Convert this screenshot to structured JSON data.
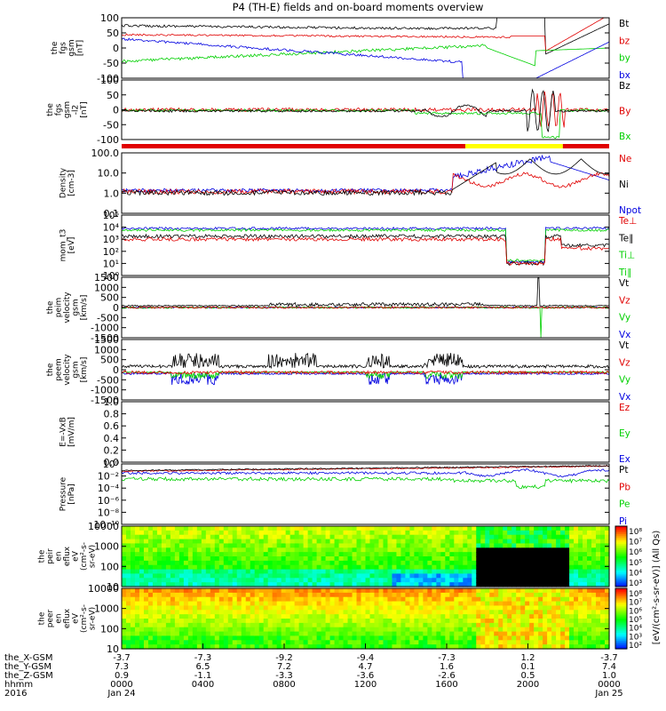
{
  "title": "P4 (TH-E) fields and on-board moments overview",
  "colors": {
    "black": "#000000",
    "red": "#e00000",
    "green": "#00d000",
    "blue": "#0000e0",
    "yellow": "#ffff00"
  },
  "chart_data": {
    "type": "line",
    "xaxis": {
      "ticks": [
        "0000",
        "0400",
        "0800",
        "1200",
        "1600",
        "2000",
        "0000"
      ],
      "dates": [
        "Jan 24",
        "",
        "",
        "",
        "",
        "",
        "Jan 25"
      ],
      "year": "2016",
      "rows": [
        {
          "label": "the_X-GSM",
          "values": [
            "-3.7",
            "-7.3",
            "-9.2",
            "-9.4",
            "-7.3",
            "1.2",
            "-3.7"
          ]
        },
        {
          "label": "the_Y-GSM",
          "values": [
            "7.3",
            "6.5",
            "7.2",
            "4.7",
            "1.6",
            "0.1",
            "7.4"
          ]
        },
        {
          "label": "the_Z-GSM",
          "values": [
            "0.9",
            "-1.1",
            "-3.3",
            "-3.6",
            "-2.6",
            "0.5",
            "1.0"
          ]
        },
        {
          "label": "hhmm",
          "values": [
            "0000",
            "0400",
            "0800",
            "1200",
            "1600",
            "2000",
            "0000"
          ]
        }
      ]
    },
    "panels": [
      {
        "id": "fgs_gsm",
        "ylabel": [
          "the",
          "fgs",
          "gsm",
          "[nT]"
        ],
        "yticks": [
          "100",
          "50",
          "0",
          "-50",
          "-100"
        ],
        "legend": [
          {
            "text": "Bt",
            "color": "black"
          },
          {
            "text": "bz",
            "color": "red"
          },
          {
            "text": "by",
            "color": "green"
          },
          {
            "text": "bx",
            "color": "blue"
          }
        ]
      },
      {
        "id": "fgs_dsl",
        "ylabel": [
          "the",
          "fgs",
          "gsm",
          "-l2",
          "[nT]"
        ],
        "yticks": [
          "100",
          "50",
          "0",
          "-50",
          "-100"
        ],
        "legend": [
          {
            "text": "Bz",
            "color": "black"
          },
          {
            "text": "By",
            "color": "red"
          },
          {
            "text": "Bx",
            "color": "green"
          }
        ]
      },
      {
        "id": "density",
        "ylabel": [
          "Density",
          "[cm-3]"
        ],
        "yticks": [
          "100.0",
          "10.0",
          "1.0",
          "0.1"
        ],
        "legend": [
          {
            "text": "Ne",
            "color": "red"
          },
          {
            "text": "Ni",
            "color": "black"
          },
          {
            "text": "Npot",
            "color": "blue"
          }
        ]
      },
      {
        "id": "temp",
        "ylabel": [
          "mom_t3",
          "[eV]"
        ],
        "yticks": [
          "10⁵",
          "10⁴",
          "10³",
          "10²",
          "10¹",
          "10⁰"
        ],
        "legend": [
          {
            "text": "Te⊥",
            "color": "red"
          },
          {
            "text": "Te∥",
            "color": "black"
          },
          {
            "text": "Ti⊥",
            "color": "green"
          },
          {
            "text": "Ti∥",
            "color": "green"
          }
        ]
      },
      {
        "id": "peim_vel",
        "ylabel": [
          "the",
          "peim",
          "velocity",
          "gsm",
          "[km/s]"
        ],
        "yticks": [
          "1500",
          "1000",
          "500",
          "0",
          "-500",
          "-1000",
          "-1500"
        ],
        "legend": [
          {
            "text": "Vt",
            "color": "black"
          },
          {
            "text": "Vz",
            "color": "red"
          },
          {
            "text": "Vy",
            "color": "green"
          },
          {
            "text": "Vx",
            "color": "blue"
          }
        ]
      },
      {
        "id": "peem_vel",
        "ylabel": [
          "the",
          "peem",
          "velocity",
          "gsm",
          "[km/s]"
        ],
        "yticks": [
          "1500",
          "1000",
          "500",
          "0",
          "-500",
          "-1000",
          "-1500"
        ],
        "legend": [
          {
            "text": "Vt",
            "color": "black"
          },
          {
            "text": "Vz",
            "color": "red"
          },
          {
            "text": "Vy",
            "color": "green"
          },
          {
            "text": "Vx",
            "color": "blue"
          }
        ]
      },
      {
        "id": "efield",
        "ylabel": [
          "E=-VxB",
          "[mV/m]"
        ],
        "yticks": [
          "1.0",
          "0.8",
          "0.6",
          "0.4",
          "0.2",
          "0.0"
        ],
        "legend": [
          {
            "text": "Ez",
            "color": "red"
          },
          {
            "text": "Ey",
            "color": "green"
          },
          {
            "text": "Ex",
            "color": "blue"
          }
        ]
      },
      {
        "id": "pressure",
        "ylabel": [
          "Pressure",
          "[nPa]"
        ],
        "yticks": [
          "10⁰",
          "10⁻²",
          "10⁻⁴",
          "10⁻⁶",
          "10⁻⁸",
          "10⁻¹⁰"
        ],
        "legend": [
          {
            "text": "Pt",
            "color": "black"
          },
          {
            "text": "Pb",
            "color": "red"
          },
          {
            "text": "Pe",
            "color": "green"
          },
          {
            "text": "Pi",
            "color": "blue"
          }
        ]
      },
      {
        "id": "peir_spec",
        "ylabel": [
          "the",
          "peir",
          "en",
          "eflux",
          "eV",
          "(cm²-s-",
          "sr-eV)"
        ],
        "yticks": [
          "10000",
          "1000",
          "100",
          "10"
        ],
        "cbar_ticks": [
          "10⁸",
          "10⁷",
          "10⁶",
          "10⁵",
          "10⁴",
          "10³"
        ]
      },
      {
        "id": "peer_spec",
        "ylabel": [
          "the",
          "peer",
          "en",
          "eflux",
          "eV",
          "(cm²-s-",
          "sr-eV)"
        ],
        "yticks": [
          "10000",
          "1000",
          "100",
          "10"
        ],
        "cbar_ticks": [
          "10⁸",
          "10⁷",
          "10⁶",
          "10⁵",
          "10⁴",
          "10³",
          "10²"
        ]
      }
    ],
    "cbar_label": "[eV/(cm²-s-sr-eV)] (All Qs)",
    "state_bar": {
      "segments": [
        {
          "from": 0,
          "to": 0.705,
          "color": "red"
        },
        {
          "from": 0.705,
          "to": 0.905,
          "color": "yellow"
        },
        {
          "from": 0.905,
          "to": 1,
          "color": "red"
        }
      ]
    }
  }
}
